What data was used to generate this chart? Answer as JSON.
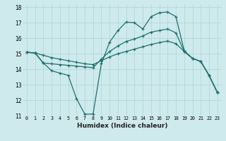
{
  "xlabel": "Humidex (Indice chaleur)",
  "background_color": "#ceeaec",
  "line_color": "#1e7070",
  "grid_color": "#aed4d6",
  "xlim": [
    -0.5,
    23.5
  ],
  "ylim": [
    11,
    18.2
  ],
  "yticks": [
    11,
    12,
    13,
    14,
    15,
    16,
    17,
    18
  ],
  "xtick_labels": [
    "0",
    "1",
    "2",
    "3",
    "4",
    "5",
    "6",
    "7",
    "8",
    "9",
    "10",
    "11",
    "12",
    "13",
    "14",
    "15",
    "16",
    "17",
    "18",
    "19",
    "20",
    "21",
    "22",
    "23"
  ],
  "lines": [
    {
      "x": [
        0,
        1,
        2,
        3,
        4,
        5,
        6,
        7,
        8,
        9,
        10,
        11,
        12,
        13,
        14,
        15,
        16,
        17,
        18,
        19,
        20,
        21,
        22,
        23
      ],
      "y": [
        15.1,
        15.05,
        14.4,
        13.9,
        13.75,
        13.6,
        12.1,
        11.1,
        11.1,
        14.35,
        15.75,
        16.5,
        17.05,
        17.0,
        16.6,
        17.4,
        17.65,
        17.7,
        17.4,
        15.2,
        14.7,
        14.5,
        13.6,
        12.5
      ]
    },
    {
      "x": [
        0,
        1,
        2,
        3,
        4,
        5,
        6,
        7,
        8,
        9,
        10,
        11,
        12,
        13,
        14,
        15,
        16,
        17,
        18,
        19,
        20,
        21,
        22,
        23
      ],
      "y": [
        15.1,
        15.05,
        14.9,
        14.75,
        14.65,
        14.55,
        14.45,
        14.35,
        14.3,
        14.55,
        14.8,
        15.0,
        15.15,
        15.3,
        15.45,
        15.6,
        15.72,
        15.82,
        15.65,
        15.15,
        14.7,
        14.5,
        13.6,
        12.5
      ]
    },
    {
      "x": [
        0,
        1,
        2,
        3,
        4,
        5,
        6,
        7,
        8,
        9,
        10,
        11,
        12,
        13,
        14,
        15,
        16,
        17,
        18,
        19,
        20,
        21,
        22,
        23
      ],
      "y": [
        15.1,
        15.05,
        14.4,
        14.35,
        14.3,
        14.25,
        14.2,
        14.15,
        14.1,
        14.65,
        15.15,
        15.5,
        15.8,
        15.95,
        16.15,
        16.4,
        16.5,
        16.6,
        16.35,
        15.15,
        14.7,
        14.5,
        13.6,
        12.5
      ]
    }
  ]
}
